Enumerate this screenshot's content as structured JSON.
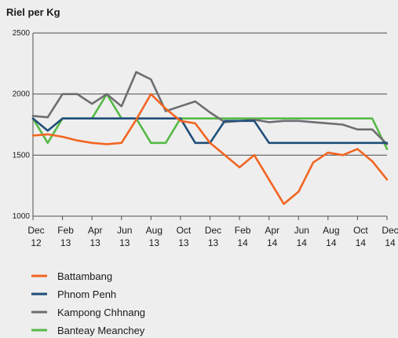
{
  "chart_data": {
    "type": "line",
    "title": "",
    "ylabel": "Riel per Kg",
    "xlabel": "",
    "ylim": [
      1000,
      2500
    ],
    "yticks": [
      1000,
      1500,
      2000,
      2500
    ],
    "grid": "horizontal",
    "legend_position": "bottom-left",
    "x_range": [
      0,
      24
    ],
    "x_ticks": [
      {
        "x": 0,
        "line1": "Dec",
        "line2": "12"
      },
      {
        "x": 2,
        "line1": "Feb",
        "line2": "13"
      },
      {
        "x": 4,
        "line1": "Apr",
        "line2": "13"
      },
      {
        "x": 6,
        "line1": "Jun",
        "line2": "13"
      },
      {
        "x": 8,
        "line1": "Aug",
        "line2": "13"
      },
      {
        "x": 10,
        "line1": "Oct",
        "line2": "13"
      },
      {
        "x": 12,
        "line1": "Dec",
        "line2": "13"
      },
      {
        "x": 14,
        "line1": "Feb",
        "line2": "14"
      },
      {
        "x": 16,
        "line1": "Apr",
        "line2": "14"
      },
      {
        "x": 18,
        "line1": "Jun",
        "line2": "14"
      },
      {
        "x": 20,
        "line1": "Aug",
        "line2": "14"
      },
      {
        "x": 22,
        "line1": "Oct",
        "line2": "14"
      },
      {
        "x": 24,
        "line1": "Dec",
        "line2": "14"
      }
    ],
    "series": [
      {
        "name": "Battambang",
        "color": "#f26522",
        "points": [
          [
            0,
            1660
          ],
          [
            1,
            1670
          ],
          [
            2,
            1650
          ],
          [
            3,
            1620
          ],
          [
            4,
            1600
          ],
          [
            5,
            1590
          ],
          [
            6,
            1600
          ],
          [
            7,
            1790
          ],
          [
            8,
            2000
          ],
          [
            9,
            1880
          ],
          [
            10,
            1780
          ],
          [
            11,
            1760
          ],
          [
            12,
            1600
          ],
          [
            13,
            1500
          ],
          [
            14,
            1400
          ],
          [
            15,
            1500
          ],
          [
            16,
            1300
          ],
          [
            17,
            1100
          ],
          [
            18,
            1200
          ],
          [
            19,
            1440
          ],
          [
            20,
            1520
          ],
          [
            21,
            1500
          ],
          [
            22,
            1550
          ],
          [
            23,
            1450
          ],
          [
            24,
            1300
          ]
        ]
      },
      {
        "name": "Phnom Penh",
        "color": "#1f4e79",
        "points": [
          [
            0,
            1800
          ],
          [
            1,
            1700
          ],
          [
            2,
            1800
          ],
          [
            3,
            1800
          ],
          [
            4,
            1800
          ],
          [
            5,
            1800
          ],
          [
            6,
            1800
          ],
          [
            7,
            1800
          ],
          [
            8,
            1800
          ],
          [
            9,
            1800
          ],
          [
            10,
            1800
          ],
          [
            11,
            1600
          ],
          [
            12,
            1600
          ],
          [
            13,
            1780
          ],
          [
            14,
            1780
          ],
          [
            15,
            1780
          ],
          [
            16,
            1600
          ],
          [
            17,
            1600
          ],
          [
            18,
            1600
          ],
          [
            19,
            1600
          ],
          [
            20,
            1600
          ],
          [
            21,
            1600
          ],
          [
            22,
            1600
          ],
          [
            23,
            1600
          ],
          [
            24,
            1600
          ]
        ]
      },
      {
        "name": "Kampong Chhnang",
        "color": "#6d6e71",
        "points": [
          [
            0,
            1820
          ],
          [
            1,
            1810
          ],
          [
            2,
            2000
          ],
          [
            3,
            2000
          ],
          [
            4,
            1920
          ],
          [
            5,
            2000
          ],
          [
            6,
            1900
          ],
          [
            7,
            2180
          ],
          [
            8,
            2120
          ],
          [
            9,
            1860
          ],
          [
            10,
            1900
          ],
          [
            11,
            1940
          ],
          [
            12,
            1850
          ],
          [
            13,
            1770
          ],
          [
            14,
            1780
          ],
          [
            15,
            1790
          ],
          [
            16,
            1770
          ],
          [
            17,
            1780
          ],
          [
            18,
            1780
          ],
          [
            19,
            1770
          ],
          [
            20,
            1760
          ],
          [
            21,
            1750
          ],
          [
            22,
            1710
          ],
          [
            23,
            1710
          ],
          [
            24,
            1590
          ]
        ]
      },
      {
        "name": "Banteay Meanchey",
        "color": "#57b947",
        "points": [
          [
            0,
            1800
          ],
          [
            1,
            1600
          ],
          [
            2,
            1800
          ],
          [
            3,
            1800
          ],
          [
            4,
            1800
          ],
          [
            5,
            2000
          ],
          [
            6,
            1800
          ],
          [
            7,
            1800
          ],
          [
            8,
            1600
          ],
          [
            9,
            1600
          ],
          [
            10,
            1800
          ],
          [
            11,
            1800
          ],
          [
            12,
            1800
          ],
          [
            13,
            1800
          ],
          [
            14,
            1800
          ],
          [
            15,
            1800
          ],
          [
            16,
            1800
          ],
          [
            17,
            1800
          ],
          [
            18,
            1800
          ],
          [
            19,
            1800
          ],
          [
            20,
            1800
          ],
          [
            21,
            1800
          ],
          [
            22,
            1800
          ],
          [
            23,
            1800
          ],
          [
            24,
            1550
          ]
        ]
      }
    ]
  }
}
